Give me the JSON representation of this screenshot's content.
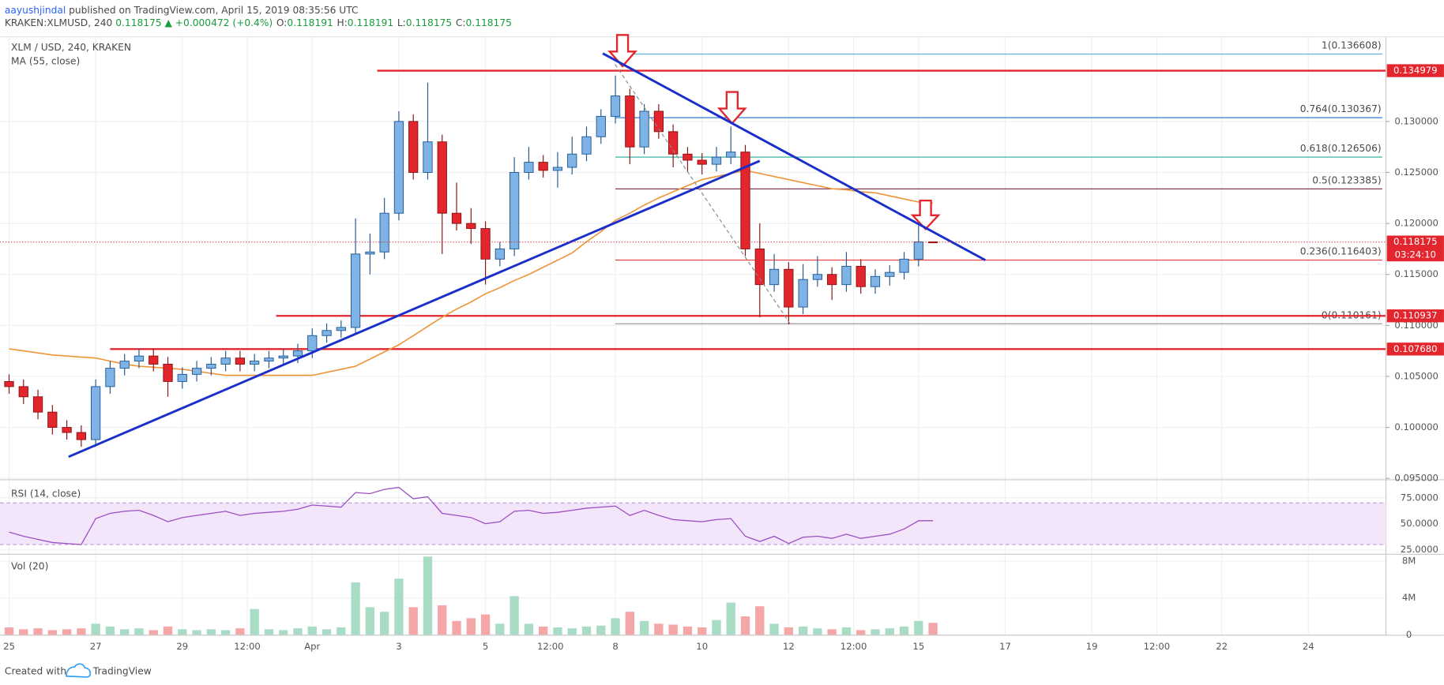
{
  "header": {
    "author": "aayushjindal",
    "published": " published on TradingView.com, April 15, 2019 08:35:56 UTC",
    "symbol": "KRAKEN:XLMUSD, 240",
    "change": "0.118175 ▲ +0.000472 (+0.4%)",
    "stats": [
      {
        "k": "O:",
        "v": "0.118191"
      },
      {
        "k": "H:",
        "v": "0.118191"
      },
      {
        "k": "L:",
        "v": "0.118175"
      },
      {
        "k": "C:",
        "v": "0.118175"
      }
    ]
  },
  "footer": {
    "created": "Created with",
    "brand": "TradingView"
  },
  "chart_data": {
    "type": "candlestick",
    "title": "XLM / USD, 240, KRAKEN",
    "up_color": "#7fb2e5",
    "up_border": "#1f5a94",
    "down_color": "#e3262d",
    "down_border": "#8c1010",
    "xlim": [
      -5,
      763
    ],
    "xticks": [
      {
        "value": 0,
        "label": "25"
      },
      {
        "value": 48,
        "label": "27"
      },
      {
        "value": 96,
        "label": "29"
      },
      {
        "value": 132,
        "label": "12:00"
      },
      {
        "value": 168,
        "label": "Apr"
      },
      {
        "value": 216,
        "label": "3"
      },
      {
        "value": 264,
        "label": "5"
      },
      {
        "value": 300,
        "label": "12:00"
      },
      {
        "value": 336,
        "label": "8"
      },
      {
        "value": 384,
        "label": "10"
      },
      {
        "value": 432,
        "label": "12"
      },
      {
        "value": 468,
        "label": "12:00"
      },
      {
        "value": 504,
        "label": "15"
      },
      {
        "value": 552,
        "label": "17"
      },
      {
        "value": 600,
        "label": "19"
      },
      {
        "value": 636,
        "label": "12:00"
      },
      {
        "value": 672,
        "label": "22"
      },
      {
        "value": 720,
        "label": "24"
      }
    ],
    "ylim": [
      0.095,
      0.1383
    ],
    "yticks": [
      {
        "value": 0.095,
        "label": "0.095000"
      },
      {
        "value": 0.1,
        "label": "0.100000"
      },
      {
        "value": 0.105,
        "label": "0.105000"
      },
      {
        "value": 0.11,
        "label": "0.110000"
      },
      {
        "value": 0.115,
        "label": "0.115000"
      },
      {
        "value": 0.12,
        "label": "0.120000"
      },
      {
        "value": 0.125,
        "label": "0.125000"
      },
      {
        "value": 0.13,
        "label": "0.130000"
      }
    ],
    "grid": true,
    "x": [
      0,
      8,
      16,
      24,
      32,
      40,
      48,
      56,
      64,
      72,
      80,
      88,
      96,
      104,
      112,
      120,
      128,
      136,
      144,
      152,
      160,
      168,
      176,
      184,
      192,
      200,
      208,
      216,
      224,
      232,
      240,
      248,
      256,
      264,
      272,
      280,
      288,
      296,
      304,
      312,
      320,
      328,
      336,
      344,
      352,
      360,
      368,
      376,
      384,
      392,
      400,
      408,
      416,
      424,
      432,
      440,
      448,
      456,
      464,
      472,
      480,
      488,
      496,
      504,
      512
    ],
    "ohlc": [
      [
        0.1045,
        0.1052,
        0.1033,
        0.104
      ],
      [
        0.104,
        0.1047,
        0.1023,
        0.103
      ],
      [
        0.103,
        0.1037,
        0.1008,
        0.1015
      ],
      [
        0.1015,
        0.1022,
        0.0993,
        0.1
      ],
      [
        0.1,
        0.1007,
        0.0988,
        0.0995
      ],
      [
        0.0995,
        0.1002,
        0.0981,
        0.0988
      ],
      [
        0.0988,
        0.1047,
        0.0981,
        0.104
      ],
      [
        0.104,
        0.1065,
        0.1033,
        0.1058
      ],
      [
        0.1058,
        0.1072,
        0.1051,
        0.1065
      ],
      [
        0.1065,
        0.1077,
        0.1058,
        0.107
      ],
      [
        0.107,
        0.1077,
        0.1055,
        0.1062
      ],
      [
        0.1062,
        0.1069,
        0.103,
        0.1045
      ],
      [
        0.1045,
        0.1059,
        0.1038,
        0.1052
      ],
      [
        0.1052,
        0.1065,
        0.1045,
        0.1058
      ],
      [
        0.1058,
        0.1069,
        0.1051,
        0.1062
      ],
      [
        0.1062,
        0.1075,
        0.1055,
        0.1068
      ],
      [
        0.1068,
        0.1075,
        0.1055,
        0.1062
      ],
      [
        0.1062,
        0.1072,
        0.1055,
        0.1065
      ],
      [
        0.1065,
        0.1075,
        0.1058,
        0.1068
      ],
      [
        0.1068,
        0.1077,
        0.1061,
        0.107
      ],
      [
        0.107,
        0.1082,
        0.1063,
        0.1075
      ],
      [
        0.1075,
        0.1097,
        0.1068,
        0.109
      ],
      [
        0.109,
        0.1102,
        0.1083,
        0.1095
      ],
      [
        0.1095,
        0.1105,
        0.1088,
        0.1098
      ],
      [
        0.1098,
        0.1205,
        0.1091,
        0.117
      ],
      [
        0.117,
        0.119,
        0.115,
        0.1172
      ],
      [
        0.1172,
        0.1225,
        0.1165,
        0.121
      ],
      [
        0.121,
        0.131,
        0.1203,
        0.13
      ],
      [
        0.13,
        0.1307,
        0.1243,
        0.125
      ],
      [
        0.125,
        0.1338,
        0.1243,
        0.128
      ],
      [
        0.128,
        0.1287,
        0.117,
        0.121
      ],
      [
        0.121,
        0.124,
        0.1193,
        0.12
      ],
      [
        0.12,
        0.1215,
        0.118,
        0.1195
      ],
      [
        0.1195,
        0.1202,
        0.114,
        0.1165
      ],
      [
        0.1165,
        0.1182,
        0.1158,
        0.1175
      ],
      [
        0.1175,
        0.1265,
        0.1168,
        0.125
      ],
      [
        0.125,
        0.1275,
        0.1243,
        0.126
      ],
      [
        0.126,
        0.1267,
        0.1245,
        0.1252
      ],
      [
        0.1252,
        0.127,
        0.1235,
        0.1255
      ],
      [
        0.1255,
        0.1285,
        0.1248,
        0.1268
      ],
      [
        0.1268,
        0.1295,
        0.1261,
        0.1285
      ],
      [
        0.1285,
        0.1312,
        0.1278,
        0.1305
      ],
      [
        0.1305,
        0.1345,
        0.1298,
        0.1325
      ],
      [
        0.1325,
        0.1332,
        0.1258,
        0.1275
      ],
      [
        0.1275,
        0.1317,
        0.1268,
        0.131
      ],
      [
        0.131,
        0.1317,
        0.1283,
        0.129
      ],
      [
        0.129,
        0.1297,
        0.1255,
        0.1268
      ],
      [
        0.1268,
        0.1275,
        0.125,
        0.1262
      ],
      [
        0.1262,
        0.1269,
        0.1248,
        0.1258
      ],
      [
        0.1258,
        0.1275,
        0.1251,
        0.1265
      ],
      [
        0.1265,
        0.1295,
        0.1258,
        0.127
      ],
      [
        0.127,
        0.1277,
        0.1168,
        0.1175
      ],
      [
        0.1175,
        0.12,
        0.1108,
        0.114
      ],
      [
        0.114,
        0.117,
        0.1133,
        0.1155
      ],
      [
        0.1155,
        0.1162,
        0.1101,
        0.1118
      ],
      [
        0.1118,
        0.116,
        0.1111,
        0.1145
      ],
      [
        0.1145,
        0.1168,
        0.1138,
        0.115
      ],
      [
        0.115,
        0.1157,
        0.1125,
        0.114
      ],
      [
        0.114,
        0.1172,
        0.1133,
        0.1158
      ],
      [
        0.1158,
        0.1165,
        0.1131,
        0.1138
      ],
      [
        0.1138,
        0.1155,
        0.1131,
        0.1148
      ],
      [
        0.1148,
        0.1159,
        0.1139,
        0.1152
      ],
      [
        0.1152,
        0.1172,
        0.1145,
        0.1165
      ],
      [
        0.1165,
        0.1198,
        0.1158,
        0.118191
      ],
      [
        0.118191,
        0.118191,
        0.118175,
        0.118175
      ]
    ],
    "ma": {
      "name": "MA (55, close)",
      "color": "#f0943a",
      "values": [
        0.1077,
        0.1075,
        0.1073,
        0.1071,
        0.107,
        0.1069,
        0.1068,
        0.1065,
        0.1062,
        0.106,
        0.1059,
        0.1058,
        0.1057,
        0.1055,
        0.1053,
        0.1051,
        0.1051,
        0.1051,
        0.1051,
        0.1051,
        0.1051,
        0.1051,
        0.1054,
        0.1057,
        0.106,
        0.1067,
        0.1074,
        0.1081,
        0.109,
        0.1099,
        0.1108,
        0.1116,
        0.1123,
        0.1131,
        0.1137,
        0.1144,
        0.115,
        0.1157,
        0.1164,
        0.1171,
        0.1182,
        0.1192,
        0.1203,
        0.121,
        0.1218,
        0.1225,
        0.1231,
        0.1237,
        0.1243,
        0.1246,
        0.1249,
        0.1252,
        0.1249,
        0.1246,
        0.1243,
        0.124,
        0.1237,
        0.1234,
        0.1233,
        0.1231,
        0.123,
        0.1227,
        0.1224,
        0.1221,
        0.122
      ]
    },
    "hlines": [
      {
        "value": 0.134979,
        "from": 204
      },
      {
        "value": 0.110937,
        "from": 148
      },
      {
        "value": 0.10768,
        "label": "0.107680",
        "from": 56
      }
    ],
    "hline_color": "#e3262d",
    "last_price": {
      "value": 0.118175,
      "countdown": "03:24:10"
    },
    "fib": [
      {
        "label": "1(0.136608)",
        "value": 0.136608,
        "color": "#5fb3e0"
      },
      {
        "label": "0.764(0.130367)",
        "value": 0.130367,
        "color": "#2f7ed8"
      },
      {
        "label": "0.618(0.126506)",
        "value": 0.126506,
        "color": "#22ab94"
      },
      {
        "label": "0.5(0.123385)",
        "value": 0.123385,
        "color": "#7d3c5a"
      },
      {
        "label": "0.236(0.116403)",
        "value": 0.116403,
        "color": "#e53935"
      },
      {
        "label": "0(0.110161)",
        "value": 0.110161,
        "color": "#9a9a9a"
      }
    ],
    "fib_from": 336,
    "trendlines": [
      {
        "x": [
          33,
          416
        ],
        "y": [
          0.09712,
          0.12613
        ],
        "color": "#1a2fc9"
      },
      {
        "x": [
          329,
          541
        ],
        "y": [
          0.13667,
          0.1164
        ],
        "color": "#1a2fc9"
      }
    ],
    "rsi": {
      "title": "RSI (14, close)",
      "color": "#9b4fc2",
      "band": [
        30,
        70
      ],
      "ylim": [
        22,
        91
      ],
      "yticks": [
        {
          "value": 75,
          "label": "75.0000"
        },
        {
          "value": 50,
          "label": "50.0000"
        },
        {
          "value": 25,
          "label": "25.0000"
        }
      ],
      "values": [
        42,
        38,
        35,
        32,
        31,
        30,
        55,
        60,
        62,
        63,
        58,
        52,
        56,
        58,
        60,
        62,
        58,
        60,
        61,
        62,
        64,
        68,
        67,
        66,
        80,
        79,
        83,
        85,
        74,
        76,
        60,
        58,
        56,
        50,
        52,
        62,
        63,
        60,
        61,
        63,
        65,
        66,
        67,
        58,
        63,
        58,
        54,
        53,
        52,
        54,
        55,
        38,
        33,
        38,
        31,
        37,
        38,
        36,
        40,
        36,
        38,
        40,
        45,
        53,
        53
      ]
    },
    "volume": {
      "title": "Vol (20)",
      "up_color": "#a8dcc4",
      "down_color": "#f5a6a6",
      "ylim": [
        0,
        8600000
      ],
      "yticks": [
        0,
        {
          "value": 4000000,
          "label": "4M"
        },
        {
          "value": 8000000,
          "label": "8M"
        }
      ],
      "values": [
        800000,
        600000,
        700000,
        500000,
        600000,
        700000,
        1200000,
        900000,
        600000,
        700000,
        500000,
        900000,
        600000,
        500000,
        600000,
        500000,
        700000,
        2800000,
        600000,
        500000,
        700000,
        900000,
        600000,
        800000,
        5700000,
        3000000,
        2500000,
        6100000,
        3000000,
        8500000,
        3200000,
        1500000,
        1800000,
        2200000,
        1200000,
        4200000,
        1200000,
        900000,
        800000,
        700000,
        900000,
        1000000,
        1800000,
        2500000,
        1500000,
        1200000,
        1100000,
        900000,
        800000,
        1600000,
        3500000,
        2000000,
        3100000,
        1200000,
        800000,
        900000,
        700000,
        600000,
        800000,
        500000,
        600000,
        700000,
        900000,
        1500000,
        1300000
      ]
    }
  }
}
